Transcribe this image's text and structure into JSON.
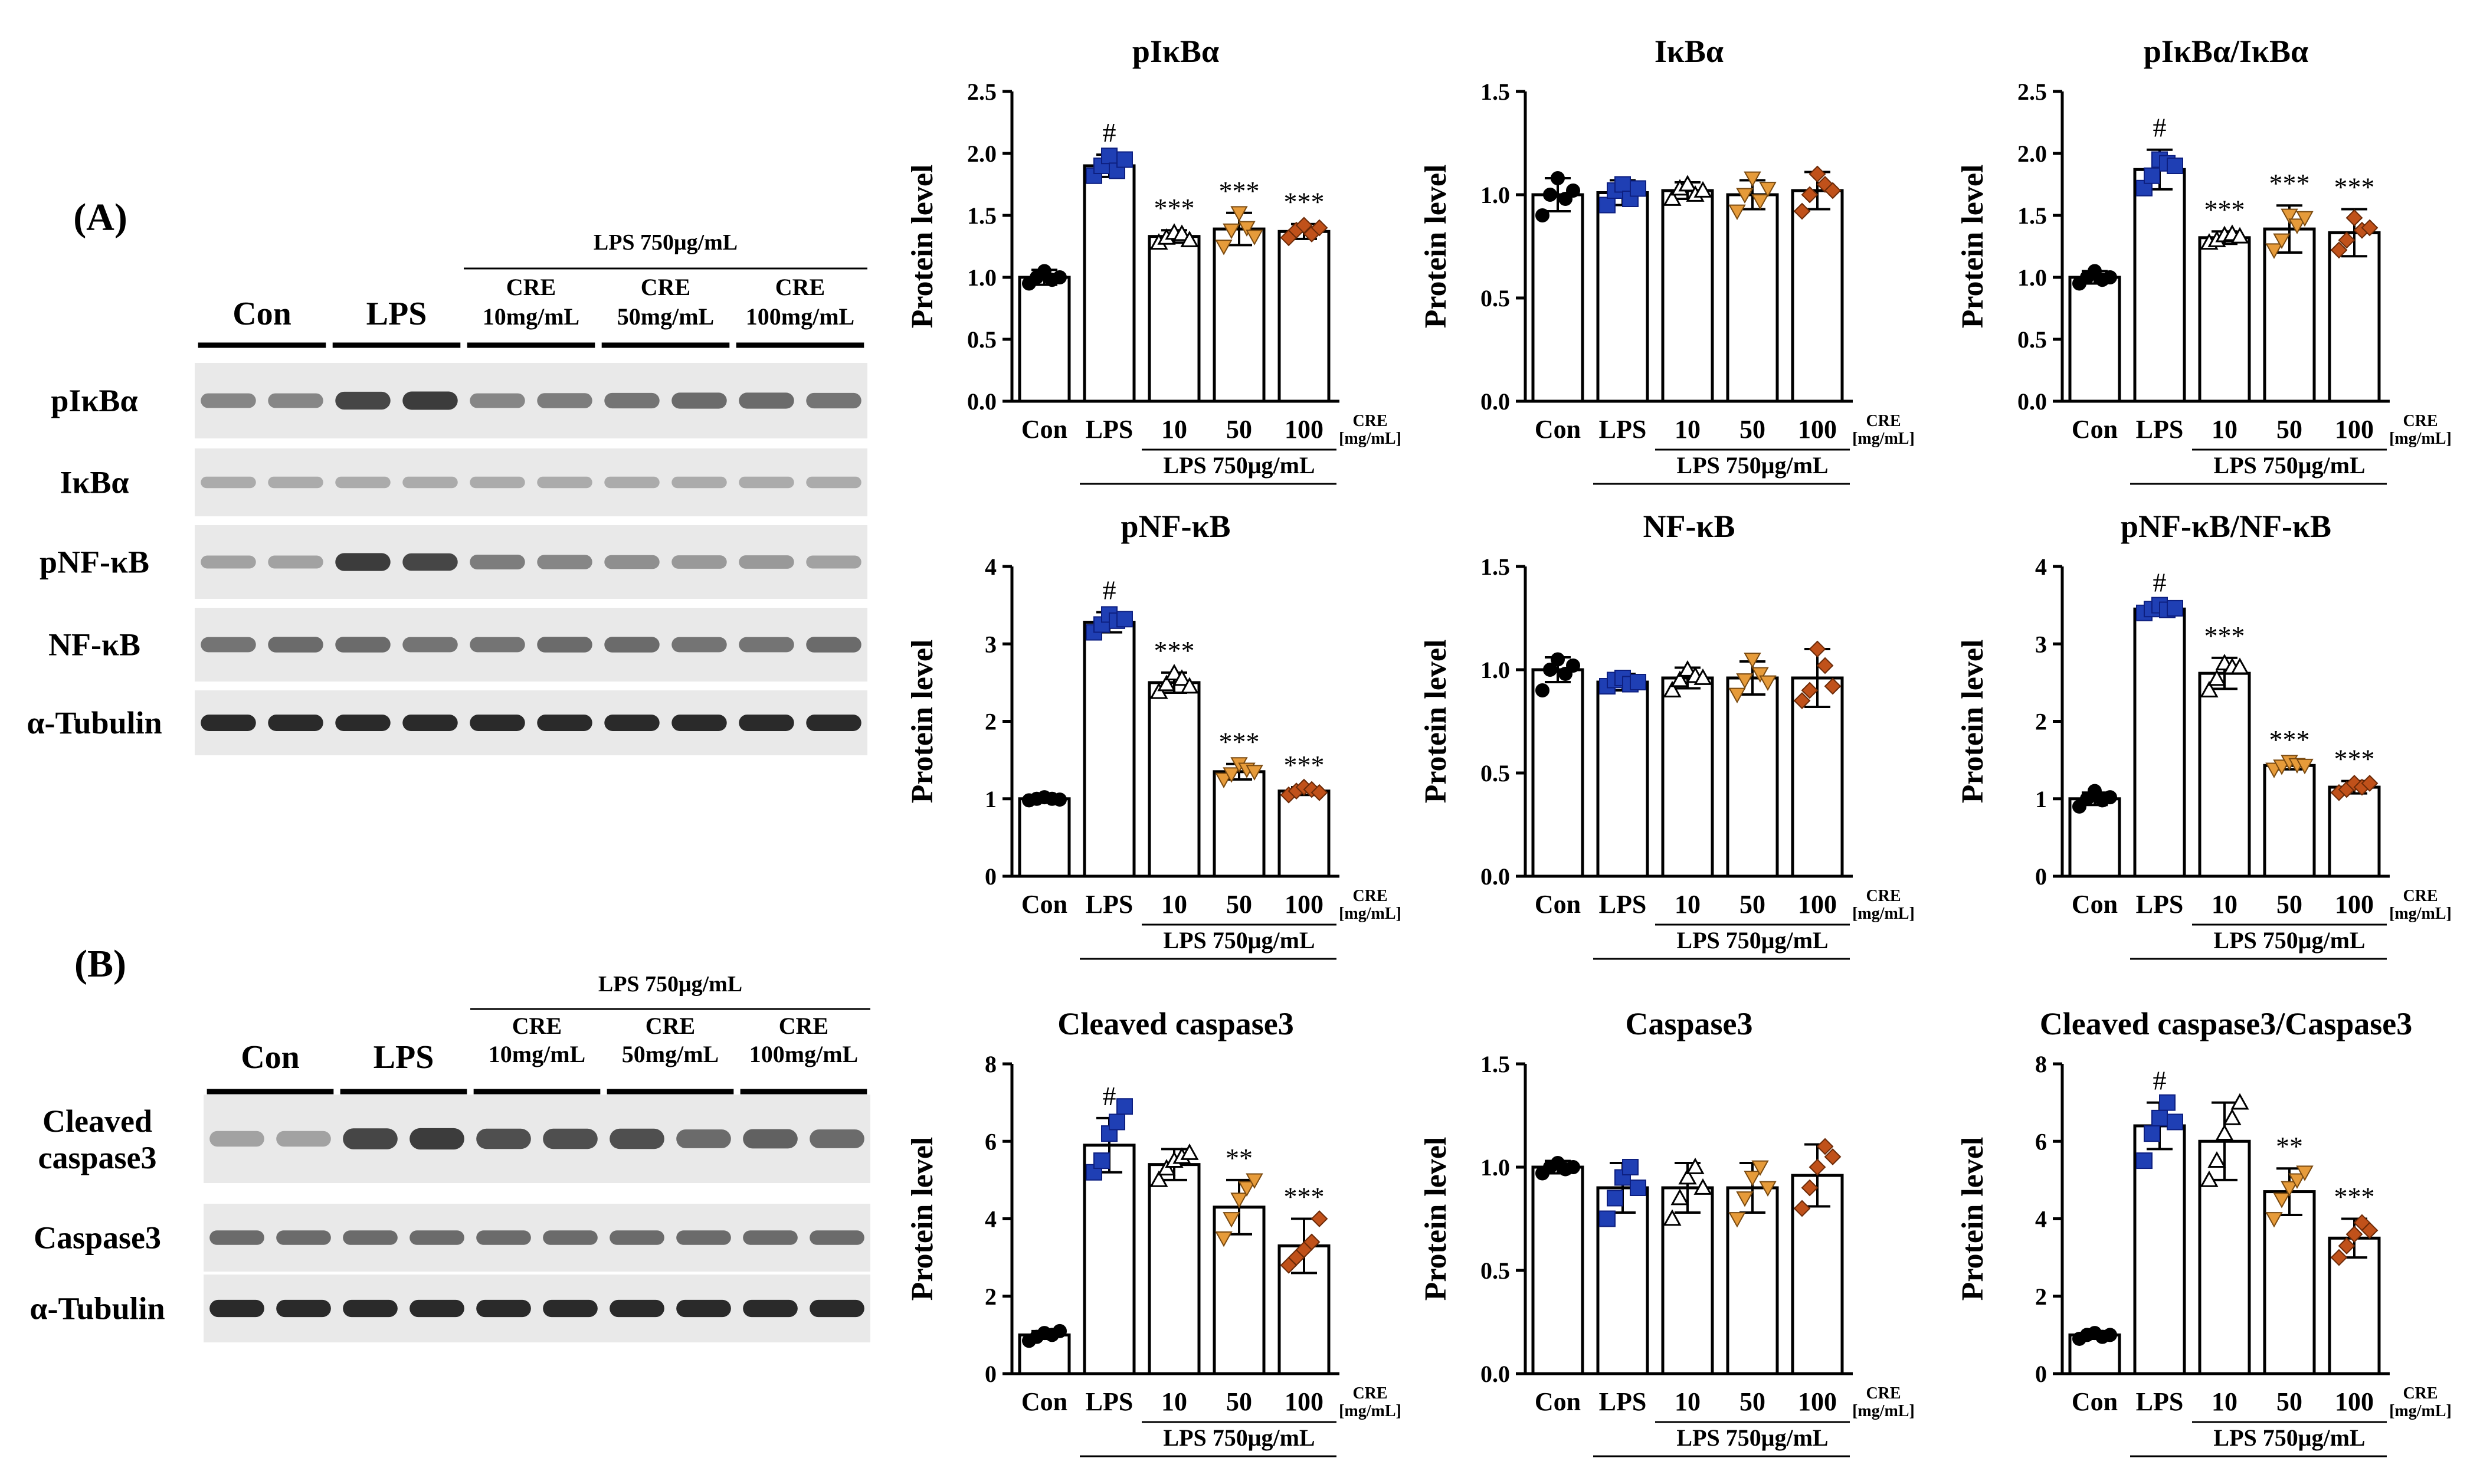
{
  "figure": {
    "panel_labels": [
      "(A)",
      "(B)"
    ],
    "lps_group_label": "LPS 750μg/mL",
    "x_labels": [
      "Con",
      "LPS",
      "10",
      "50",
      "100"
    ],
    "cre_label": "CRE",
    "cre_unit": "[mg/mL]",
    "bracket_label": "LPS 750μg/mL"
  },
  "blots": [
    {
      "panel": "(A)",
      "groups": [
        "Con",
        "LPS"
      ],
      "cre_groups": [
        [
          "CRE",
          "10mg/mL"
        ],
        [
          "CRE",
          "50mg/mL"
        ],
        [
          "CRE",
          "100mg/mL"
        ]
      ],
      "lps_label": "LPS 750μg/mL",
      "rows": [
        "pIκBα",
        "IκBα",
        "pNF-κB",
        "NF-κB",
        "α-Tubulin"
      ],
      "intensity": [
        [
          0.45,
          0.45,
          0.8,
          0.85,
          0.45,
          0.5,
          0.55,
          0.6,
          0.6,
          0.55
        ],
        [
          0.25,
          0.25,
          0.25,
          0.25,
          0.25,
          0.25,
          0.25,
          0.25,
          0.25,
          0.25
        ],
        [
          0.3,
          0.3,
          0.85,
          0.8,
          0.5,
          0.45,
          0.4,
          0.35,
          0.35,
          0.3
        ],
        [
          0.55,
          0.6,
          0.6,
          0.55,
          0.55,
          0.6,
          0.6,
          0.55,
          0.55,
          0.6
        ],
        [
          0.95,
          0.95,
          0.95,
          0.95,
          0.95,
          0.95,
          0.95,
          0.95,
          0.95,
          0.95
        ]
      ]
    },
    {
      "panel": "(B)",
      "groups": [
        "Con",
        "LPS"
      ],
      "cre_groups": [
        [
          "CRE",
          "10mg/mL"
        ],
        [
          "CRE",
          "50mg/mL"
        ],
        [
          "CRE",
          "100mg/mL"
        ]
      ],
      "lps_label": "LPS 750μg/mL",
      "rows": [
        "Cleaved\ncaspase3",
        "Caspase3",
        "α-Tubulin"
      ],
      "intensity": [
        [
          0.3,
          0.3,
          0.8,
          0.85,
          0.75,
          0.75,
          0.75,
          0.6,
          0.65,
          0.6
        ],
        [
          0.6,
          0.6,
          0.6,
          0.6,
          0.6,
          0.6,
          0.6,
          0.6,
          0.6,
          0.6
        ],
        [
          0.95,
          0.95,
          0.95,
          0.95,
          0.95,
          0.95,
          0.95,
          0.95,
          0.95,
          0.95
        ]
      ]
    }
  ],
  "colors": {
    "con": "#000000",
    "lps": "#1f3fb4",
    "cre10": "#ffffff",
    "cre50": "#e69b3a",
    "cre100": "#c0511a"
  },
  "chart_data": [
    {
      "type": "bar",
      "title": "pIκBα",
      "ylabel": "Protein level",
      "ylim": [
        0,
        2.5
      ],
      "yticks": [
        "0.0",
        "0.5",
        "1.0",
        "1.5",
        "2.0",
        "2.5"
      ],
      "categories": [
        "Con",
        "LPS",
        "10",
        "50",
        "100"
      ],
      "values": [
        1.0,
        1.9,
        1.33,
        1.39,
        1.37
      ],
      "errors": [
        0.06,
        0.09,
        0.05,
        0.13,
        0.06
      ],
      "points": [
        [
          0.95,
          1.0,
          1.05,
          0.98,
          1.0
        ],
        [
          1.82,
          1.9,
          1.98,
          1.86,
          1.95
        ],
        [
          1.28,
          1.32,
          1.36,
          1.35,
          1.3
        ],
        [
          1.25,
          1.38,
          1.52,
          1.4,
          1.33
        ],
        [
          1.32,
          1.38,
          1.42,
          1.35,
          1.4
        ]
      ],
      "annotations": [
        "",
        "#",
        "***",
        "***",
        "***"
      ]
    },
    {
      "type": "bar",
      "title": "IκBα",
      "ylabel": "Protein level",
      "ylim": [
        0,
        1.5
      ],
      "yticks": [
        "0.0",
        "0.5",
        "1.0",
        "1.5"
      ],
      "categories": [
        "Con",
        "LPS",
        "10",
        "50",
        "100"
      ],
      "values": [
        1.0,
        1.01,
        1.02,
        1.0,
        1.02
      ],
      "errors": [
        0.08,
        0.06,
        0.04,
        0.07,
        0.09
      ],
      "points": [
        [
          0.9,
          1.0,
          1.08,
          0.98,
          1.02
        ],
        [
          0.95,
          1.02,
          1.05,
          0.98,
          1.03
        ],
        [
          0.98,
          1.03,
          1.05,
          1.0,
          1.02
        ],
        [
          0.92,
          1.0,
          1.08,
          0.97,
          1.03
        ],
        [
          0.92,
          1.0,
          1.1,
          1.05,
          1.02
        ]
      ],
      "annotations": [
        "",
        "",
        "",
        "",
        ""
      ]
    },
    {
      "type": "bar",
      "title": "pIκBα/IκBα",
      "ylabel": "Protein level",
      "ylim": [
        0,
        2.5
      ],
      "yticks": [
        "0.0",
        "0.5",
        "1.0",
        "1.5",
        "2.0",
        "2.5"
      ],
      "categories": [
        "Con",
        "LPS",
        "10",
        "50",
        "100"
      ],
      "values": [
        1.0,
        1.87,
        1.32,
        1.39,
        1.36
      ],
      "errors": [
        0.05,
        0.16,
        0.05,
        0.19,
        0.19
      ],
      "points": [
        [
          0.95,
          1.0,
          1.05,
          0.98,
          1.0
        ],
        [
          1.72,
          1.82,
          1.95,
          1.92,
          1.9
        ],
        [
          1.28,
          1.3,
          1.34,
          1.35,
          1.33
        ],
        [
          1.22,
          1.3,
          1.5,
          1.42,
          1.48
        ],
        [
          1.22,
          1.3,
          1.48,
          1.38,
          1.4
        ]
      ],
      "annotations": [
        "",
        "#",
        "***",
        "***",
        "***"
      ]
    },
    {
      "type": "bar",
      "title": "pNF-κB",
      "ylabel": "Protein level",
      "ylim": [
        0,
        4
      ],
      "yticks": [
        "0",
        "1",
        "2",
        "3",
        "4"
      ],
      "categories": [
        "Con",
        "LPS",
        "10",
        "50",
        "100"
      ],
      "values": [
        1.0,
        3.28,
        2.5,
        1.35,
        1.1
      ],
      "errors": [
        0.02,
        0.13,
        0.13,
        0.1,
        0.05
      ],
      "points": [
        [
          0.98,
          1.0,
          1.02,
          1.0,
          0.99
        ],
        [
          3.15,
          3.25,
          3.38,
          3.3,
          3.32
        ],
        [
          2.38,
          2.48,
          2.62,
          2.55,
          2.45
        ],
        [
          1.25,
          1.32,
          1.45,
          1.38,
          1.35
        ],
        [
          1.05,
          1.1,
          1.15,
          1.12,
          1.08
        ]
      ],
      "annotations": [
        "",
        "#",
        "***",
        "***",
        "***"
      ]
    },
    {
      "type": "bar",
      "title": "NF-κB",
      "ylabel": "Protein level",
      "ylim": [
        0,
        1.5
      ],
      "yticks": [
        "0.0",
        "0.5",
        "1.0",
        "1.5"
      ],
      "categories": [
        "Con",
        "LPS",
        "10",
        "50",
        "100"
      ],
      "values": [
        1.0,
        0.94,
        0.96,
        0.96,
        0.96
      ],
      "errors": [
        0.06,
        0.04,
        0.05,
        0.08,
        0.14
      ],
      "points": [
        [
          0.9,
          1.0,
          1.05,
          0.98,
          1.02
        ],
        [
          0.92,
          0.95,
          0.96,
          0.93,
          0.94
        ],
        [
          0.9,
          0.95,
          1.0,
          0.97,
          0.96
        ],
        [
          0.88,
          0.95,
          1.05,
          0.98,
          0.94
        ],
        [
          0.85,
          0.9,
          1.1,
          1.02,
          0.92
        ]
      ],
      "annotations": [
        "",
        "",
        "",
        "",
        ""
      ]
    },
    {
      "type": "bar",
      "title": "pNF-κB/NF-κB",
      "ylabel": "Protein level",
      "ylim": [
        0,
        4
      ],
      "yticks": [
        "0",
        "1",
        "2",
        "3",
        "4"
      ],
      "categories": [
        "Con",
        "LPS",
        "10",
        "50",
        "100"
      ],
      "values": [
        1.0,
        3.45,
        2.62,
        1.43,
        1.15
      ],
      "errors": [
        0.08,
        0.06,
        0.2,
        0.05,
        0.08
      ],
      "points": [
        [
          0.9,
          1.0,
          1.1,
          0.98,
          1.02
        ],
        [
          3.4,
          3.45,
          3.5,
          3.44,
          3.46
        ],
        [
          2.4,
          2.55,
          2.75,
          2.7,
          2.7
        ],
        [
          1.38,
          1.42,
          1.48,
          1.44,
          1.43
        ],
        [
          1.08,
          1.12,
          1.2,
          1.15,
          1.2
        ]
      ],
      "annotations": [
        "",
        "#",
        "***",
        "***",
        "***"
      ]
    },
    {
      "type": "bar",
      "title": "Cleaved caspase3",
      "ylabel": "Protein level",
      "ylim": [
        0,
        8
      ],
      "yticks": [
        "0",
        "2",
        "4",
        "6",
        "8"
      ],
      "categories": [
        "Con",
        "LPS",
        "10",
        "50",
        "100"
      ],
      "values": [
        1.0,
        5.9,
        5.4,
        4.3,
        3.3
      ],
      "errors": [
        0.1,
        0.7,
        0.4,
        0.7,
        0.7
      ],
      "points": [
        [
          0.85,
          0.95,
          1.05,
          1.0,
          1.1
        ],
        [
          5.2,
          5.5,
          6.2,
          6.5,
          6.9
        ],
        [
          5.0,
          5.3,
          5.5,
          5.6,
          5.7
        ],
        [
          3.5,
          4.0,
          4.5,
          4.8,
          5.0
        ],
        [
          2.8,
          3.0,
          3.2,
          3.4,
          4.0
        ]
      ],
      "annotations": [
        "",
        "#",
        "",
        "**",
        "***"
      ]
    },
    {
      "type": "bar",
      "title": "Caspase3",
      "ylabel": "Protein level",
      "ylim": [
        0,
        1.5
      ],
      "yticks": [
        "0.0",
        "0.5",
        "1.0",
        "1.5"
      ],
      "categories": [
        "Con",
        "LPS",
        "10",
        "50",
        "100"
      ],
      "values": [
        1.0,
        0.9,
        0.9,
        0.9,
        0.96
      ],
      "errors": [
        0.03,
        0.12,
        0.12,
        0.12,
        0.15
      ],
      "points": [
        [
          0.97,
          1.0,
          1.02,
          0.99,
          1.0
        ],
        [
          0.75,
          0.85,
          0.95,
          1.0,
          0.9
        ],
        [
          0.75,
          0.85,
          0.95,
          1.0,
          0.9
        ],
        [
          0.75,
          0.85,
          0.95,
          1.0,
          0.9
        ],
        [
          0.8,
          0.9,
          1.0,
          1.1,
          1.05
        ]
      ],
      "annotations": [
        "",
        "",
        "",
        "",
        ""
      ]
    },
    {
      "type": "bar",
      "title": "Cleaved caspase3/Caspase3",
      "ylabel": "Protein level",
      "ylim": [
        0,
        8
      ],
      "yticks": [
        "0",
        "2",
        "4",
        "6",
        "8"
      ],
      "categories": [
        "Con",
        "LPS",
        "10",
        "50",
        "100"
      ],
      "values": [
        1.0,
        6.4,
        6.0,
        4.7,
        3.5
      ],
      "errors": [
        0.1,
        0.6,
        1.0,
        0.6,
        0.5
      ],
      "points": [
        [
          0.9,
          1.0,
          1.05,
          0.95,
          1.0
        ],
        [
          5.5,
          6.2,
          6.6,
          7.0,
          6.5
        ],
        [
          5.0,
          5.5,
          6.2,
          6.6,
          7.0
        ],
        [
          4.0,
          4.5,
          4.8,
          5.0,
          5.2
        ],
        [
          3.0,
          3.3,
          3.6,
          3.9,
          3.7
        ]
      ],
      "annotations": [
        "",
        "#",
        "",
        "**",
        "***"
      ]
    }
  ]
}
